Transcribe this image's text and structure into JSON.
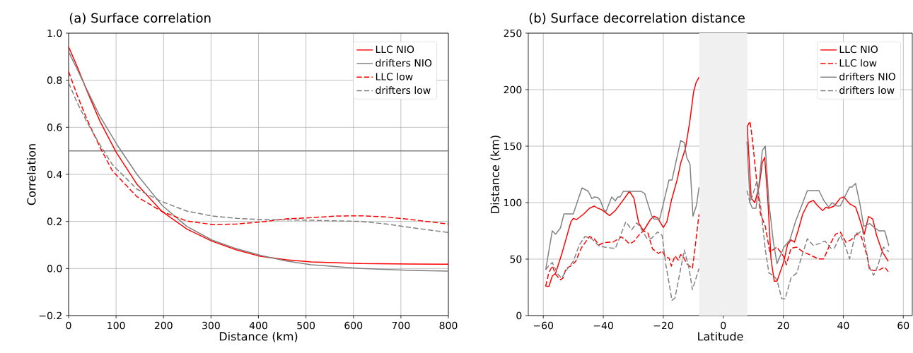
{
  "chart_data": [
    {
      "type": "line",
      "title": "(a) Surface correlation",
      "xlabel": "Distance (km)",
      "ylabel": "Correlation",
      "xlim": [
        0,
        800
      ],
      "ylim": [
        -0.2,
        1.0
      ],
      "xticks": [
        0,
        100,
        200,
        300,
        400,
        500,
        600,
        700,
        800
      ],
      "yticks": [
        {
          "value": -0.2,
          "label": "−0.2"
        },
        {
          "value": 0,
          "label": "0.0"
        },
        0.2,
        0.4,
        0.6,
        0.8,
        {
          "value": 1,
          "label": "1.0"
        }
      ],
      "grid": true,
      "legend": "top right",
      "ref_lines": [
        {
          "axis": "y",
          "value": 0.5,
          "color": "#808080"
        }
      ],
      "series": [
        {
          "name": "LLC NIO",
          "color": "#ff0000",
          "line_style": "solid",
          "x": [
            0,
            18,
            39,
            66,
            100,
            144,
            197,
            249,
            302,
            354,
            401,
            459,
            511,
            616,
            721,
            800
          ],
          "values": [
            0.942,
            0.858,
            0.753,
            0.626,
            0.495,
            0.358,
            0.242,
            0.168,
            0.116,
            0.079,
            0.053,
            0.037,
            0.028,
            0.021,
            0.019,
            0.018
          ]
        },
        {
          "name": "drifters NIO",
          "color": "#808080",
          "line_style": "solid",
          "x": [
            0,
            18,
            39,
            66,
            102,
            144,
            197,
            249,
            302,
            354,
            406,
            459,
            511,
            616,
            721,
            800
          ],
          "values": [
            0.921,
            0.847,
            0.758,
            0.647,
            0.526,
            0.4,
            0.268,
            0.179,
            0.121,
            0.084,
            0.055,
            0.032,
            0.016,
            0.0,
            -0.008,
            -0.011
          ]
        },
        {
          "name": "LLC low",
          "color": "#ff0000",
          "line_style": "dashed",
          "x": [
            0,
            18,
            39,
            66,
            92,
            144,
            197,
            249,
            302,
            354,
            406,
            459,
            511,
            564,
            616,
            669,
            721,
            800
          ],
          "values": [
            0.837,
            0.737,
            0.632,
            0.516,
            0.416,
            0.305,
            0.242,
            0.202,
            0.187,
            0.189,
            0.198,
            0.211,
            0.216,
            0.223,
            0.224,
            0.219,
            0.208,
            0.189
          ]
        },
        {
          "name": "drifters low",
          "color": "#808080",
          "line_style": "dashed",
          "x": [
            0,
            18,
            39,
            66,
            92,
            144,
            197,
            249,
            302,
            354,
            406,
            511,
            616,
            669,
            721,
            800
          ],
          "values": [
            0.789,
            0.705,
            0.621,
            0.526,
            0.442,
            0.337,
            0.284,
            0.244,
            0.223,
            0.213,
            0.208,
            0.205,
            0.2,
            0.189,
            0.174,
            0.153
          ]
        }
      ]
    },
    {
      "type": "line",
      "title": "(b) Surface decorrelation distance",
      "xlabel": "Latitude",
      "ylabel": "Distance (km)",
      "xlim": [
        -65,
        63
      ],
      "ylim": [
        0,
        250
      ],
      "xticks": [
        {
          "value": -60,
          "label": "−60"
        },
        {
          "value": -40,
          "label": "−40"
        },
        {
          "value": -20,
          "label": "−20"
        },
        0,
        20,
        40,
        60
      ],
      "yticks": [
        0,
        50,
        100,
        150,
        200,
        250
      ],
      "grid": true,
      "legend": "top right",
      "bands": [
        {
          "axis": "x",
          "from": -8,
          "to": 8,
          "color": "#f0f0f0"
        }
      ],
      "series": [
        {
          "name": "LLC NIO",
          "color": "#ff0000",
          "line_style": "solid",
          "x": [
            -59.2,
            -58.1,
            -57,
            -55.9,
            -53.9,
            -50.8,
            -50,
            -48.9,
            -46.5,
            -44.6,
            -43,
            -41.8,
            -40.7,
            -37.9,
            -36,
            -33.7,
            -31.3,
            -29.8,
            -28.2,
            -26.6,
            -24.3,
            -23.1,
            -21.9,
            -20,
            -18.8,
            -17.3,
            -15.3,
            -14.2,
            -12.6,
            -11.1,
            -9.9,
            -9.1,
            -8.1,
            0,
            8.0,
            9.3,
            10.5,
            12,
            13,
            13.8,
            14.9,
            15.9,
            17,
            17.9,
            20.2,
            21.4,
            22.6,
            23.7,
            24.9,
            26.5,
            28.4,
            30,
            31.2,
            33.1,
            34.3,
            35.1,
            37,
            39,
            40.2,
            42.1,
            44.1,
            45.2,
            47,
            48.4,
            49.8,
            51.1,
            53,
            55
          ],
          "values": [
            26,
            26,
            35,
            37.5,
            54,
            83,
            86,
            85,
            90,
            95,
            97,
            95,
            94,
            88.5,
            93,
            101,
            110,
            104,
            82,
            75,
            85,
            88,
            86.5,
            78,
            83,
            102,
            121,
            135,
            148,
            173,
            198,
            206,
            211,
            null,
            167,
            104,
            100,
            115,
            135.6,
            140,
            100,
            50,
            30.4,
            30.4,
            48,
            62.7,
            67,
            65,
            75,
            90,
            100,
            102,
            98,
            93,
            96,
            95,
            97,
            104,
            105,
            99,
            96,
            87.7,
            72,
            87.7,
            85.6,
            71,
            56.5,
            48
          ]
        },
        {
          "name": "LLC low",
          "color": "#ff0000",
          "line_style": "dashed",
          "x": [
            -59.2,
            -58.2,
            -57,
            -55.9,
            -54.3,
            -53.5,
            -52.4,
            -50.8,
            -49.2,
            -47.3,
            -44.6,
            -43,
            -41.4,
            -39.9,
            -37.9,
            -36.8,
            -34,
            -33,
            -31.3,
            -29.8,
            -28.2,
            -26.6,
            -25.1,
            -23.6,
            -21.6,
            -20.4,
            -19.2,
            -18.1,
            -17.3,
            -16.1,
            -15,
            -14.2,
            -13.4,
            -12.2,
            -10.3,
            -9.5,
            -8.1,
            0,
            7.9,
            8.9,
            9.7,
            10.9,
            12.4,
            14,
            15.5,
            16.7,
            17.9,
            20.2,
            21,
            22.6,
            24.5,
            26.5,
            28.4,
            31.6,
            33.5,
            35.5,
            37.4,
            39,
            40.9,
            42.5,
            44.5,
            46,
            48,
            48.7,
            50.3,
            52.3,
            53.8,
            55
          ],
          "values": [
            26,
            37.5,
            44,
            36.5,
            31.7,
            33,
            41.7,
            44,
            48,
            60,
            70,
            68,
            62.5,
            64.6,
            65,
            65,
            69.6,
            68,
            63.5,
            65.6,
            71,
            75,
            73,
            59,
            55,
            57.3,
            52,
            51,
            43.8,
            53,
            49,
            54,
            52.5,
            46,
            41.7,
            58,
            89.6,
            null,
            167,
            172,
            156,
            125,
            90,
            79,
            56.5,
            58.5,
            60.6,
            52,
            45,
            59.6,
            60.6,
            56.5,
            54.4,
            50.2,
            50.2,
            62.7,
            72,
            74,
            64.8,
            66.9,
            72,
            70,
            52,
            40.8,
            39.8,
            40.8,
            43,
            38.8
          ]
        },
        {
          "name": "drifters NIO",
          "color": "#808080",
          "line_style": "solid",
          "x": [
            -59.2,
            -57,
            -55.9,
            -54.3,
            -53.1,
            -50,
            -47.1,
            -45,
            -43.8,
            -43,
            -41.8,
            -41,
            -39.9,
            -39.1,
            -37.2,
            -36,
            -35.2,
            -34.4,
            -33.3,
            -27.4,
            -26.2,
            -23.9,
            -23.1,
            -21.2,
            -18.1,
            -17.1,
            -14.2,
            -13,
            -12.2,
            -11.1,
            -10.1,
            -8.9,
            -8.1,
            0,
            7.9,
            8.9,
            9.7,
            10.9,
            12,
            13,
            14,
            15.2,
            16.7,
            17.9,
            20.2,
            22.2,
            24.1,
            26.5,
            28,
            31.9,
            33.5,
            35.1,
            36.3,
            37.8,
            39,
            42.1,
            42.9,
            44.1,
            45.6,
            46.8,
            48.8,
            50.3,
            51.9,
            53.8,
            55.2
          ],
          "values": [
            40.6,
            75,
            72,
            77.5,
            90,
            90,
            113,
            110,
            103.5,
            105,
            104.5,
            102,
            94,
            92,
            105,
            101.5,
            105,
            105,
            110,
            110,
            108,
            88.5,
            85.5,
            85.5,
            120,
            120,
            155,
            153,
            140,
            134,
            88,
            98,
            113.5,
            null,
            154,
            100,
            95,
            95,
            119,
            146,
            150,
            100,
            65,
            46,
            60.6,
            67,
            83.5,
            100,
            110.6,
            110.6,
            102,
            96,
            100,
            97,
            97,
            113.8,
            113.8,
            117,
            98,
            79,
            81.5,
            78,
            75,
            75,
            61.7
          ]
        },
        {
          "name": "drifters low",
          "color": "#808080",
          "line_style": "dashed",
          "x": [
            -59.2,
            -58.2,
            -57,
            -55.1,
            -53.9,
            -51.9,
            -50,
            -48,
            -46.1,
            -43.8,
            -41.4,
            -39.1,
            -36,
            -34.4,
            -32.5,
            -30.5,
            -28.9,
            -27.8,
            -25.5,
            -23.9,
            -21.9,
            -20.4,
            -19.2,
            -17.1,
            -16.1,
            -14.5,
            -13,
            -11.4,
            -10.3,
            -9.1,
            -8.1,
            0,
            7.9,
            8.9,
            10,
            11.2,
            12.4,
            14,
            15.2,
            16.7,
            17.9,
            19.5,
            20.6,
            22.6,
            24.5,
            26.1,
            28,
            30,
            32.3,
            33.9,
            35.9,
            37,
            39,
            40.5,
            42.1,
            44.1,
            45.2,
            46.4,
            48.7,
            50.1,
            51.5,
            53.4,
            55.2
          ],
          "values": [
            40.6,
            44,
            47,
            36.5,
            33,
            41.7,
            48,
            62.5,
            70,
            68,
            61.5,
            60.4,
            59.4,
            70,
            83,
            76,
            82,
            79,
            68.5,
            68.5,
            74,
            71,
            46,
            13.5,
            15.6,
            37.5,
            58,
            41.7,
            23,
            33,
            41.7,
            null,
            110.6,
            100,
            108.5,
            119,
            98,
            58.5,
            37.7,
            35.6,
            31.5,
            14.8,
            14.8,
            33.5,
            37.7,
            52,
            68,
            62,
            64,
            66,
            59.6,
            59.6,
            71,
            62.7,
            50.2,
            73,
            73,
            76,
            43,
            35.6,
            44,
            60.6,
            56.5
          ]
        }
      ]
    }
  ]
}
